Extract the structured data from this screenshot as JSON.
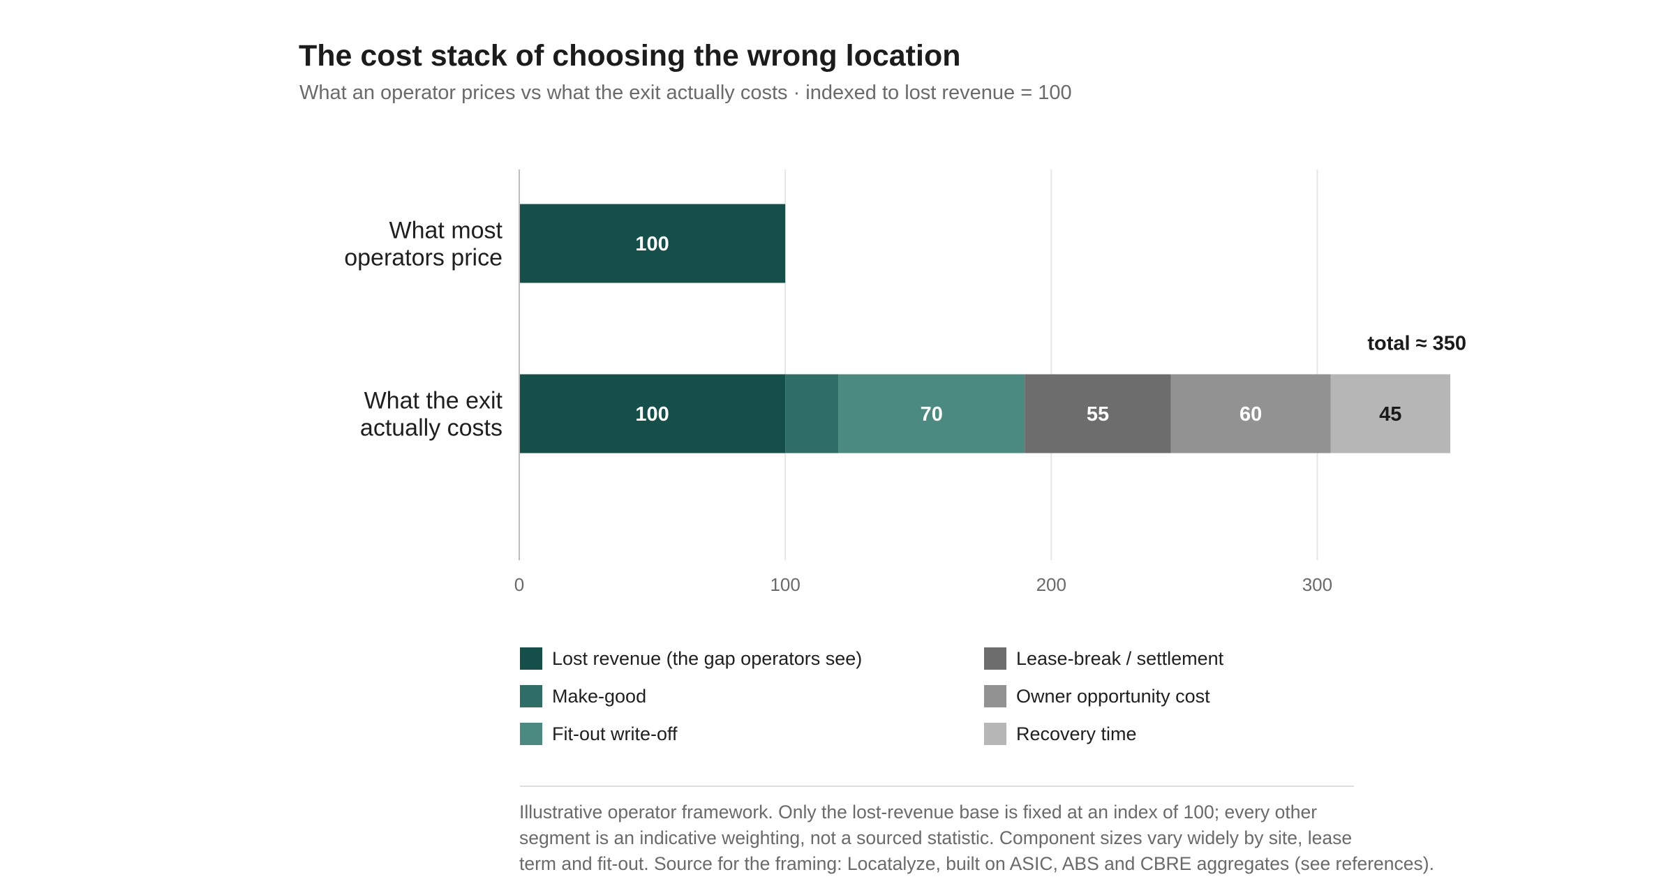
{
  "header": {
    "title": "The cost stack of choosing the wrong location",
    "subtitle": "What an operator prices vs what the exit actually costs · indexed to lost revenue = 100"
  },
  "chart_data": {
    "type": "bar",
    "orientation": "horizontal",
    "stacked": true,
    "categories": [
      "What most operators price",
      "What the exit actually costs"
    ],
    "category_label_lines": [
      [
        "What most",
        "operators price"
      ],
      [
        "What the exit",
        "actually costs"
      ]
    ],
    "series": [
      {
        "name": "Lost revenue (the gap operators see)",
        "color": "#154f49",
        "label_color": "#ffffff",
        "values": [
          100,
          100
        ],
        "labels": [
          "100",
          "100"
        ]
      },
      {
        "name": "Make-good",
        "color": "#2e6e66",
        "label_color": "#ffffff",
        "values": [
          0,
          20
        ],
        "labels": [
          "",
          ""
        ]
      },
      {
        "name": "Fit-out write-off",
        "color": "#4b8a81",
        "label_color": "#ffffff",
        "values": [
          0,
          70
        ],
        "labels": [
          "",
          "70"
        ]
      },
      {
        "name": "Lease-break / settlement",
        "color": "#6d6d6d",
        "label_color": "#ffffff",
        "values": [
          0,
          55
        ],
        "labels": [
          "",
          "55"
        ]
      },
      {
        "name": "Owner opportunity cost",
        "color": "#929292",
        "label_color": "#ffffff",
        "values": [
          0,
          60
        ],
        "labels": [
          "",
          "60"
        ]
      },
      {
        "name": "Recovery time",
        "color": "#b6b6b6",
        "label_color": "#1a1a1a",
        "values": [
          0,
          45
        ],
        "labels": [
          "",
          "45"
        ]
      }
    ],
    "xlim": [
      0,
      350
    ],
    "xticks": [
      0,
      100,
      200,
      300
    ],
    "xtick_labels": [
      "0",
      "100",
      "200",
      "300"
    ],
    "grid": true,
    "annotation": "total ≈ 350",
    "xlabel": "",
    "ylabel": "",
    "legend_placement": "bottom"
  },
  "footnote": {
    "lines": [
      "Illustrative operator framework. Only the lost-revenue base is fixed at an index of 100; every other",
      "segment is an indicative weighting, not a sourced statistic. Component sizes vary widely by site, lease",
      "term and fit-out. Source for the framing: Locatalyze, built on ASIC, ABS and CBRE aggregates (see references)."
    ]
  }
}
